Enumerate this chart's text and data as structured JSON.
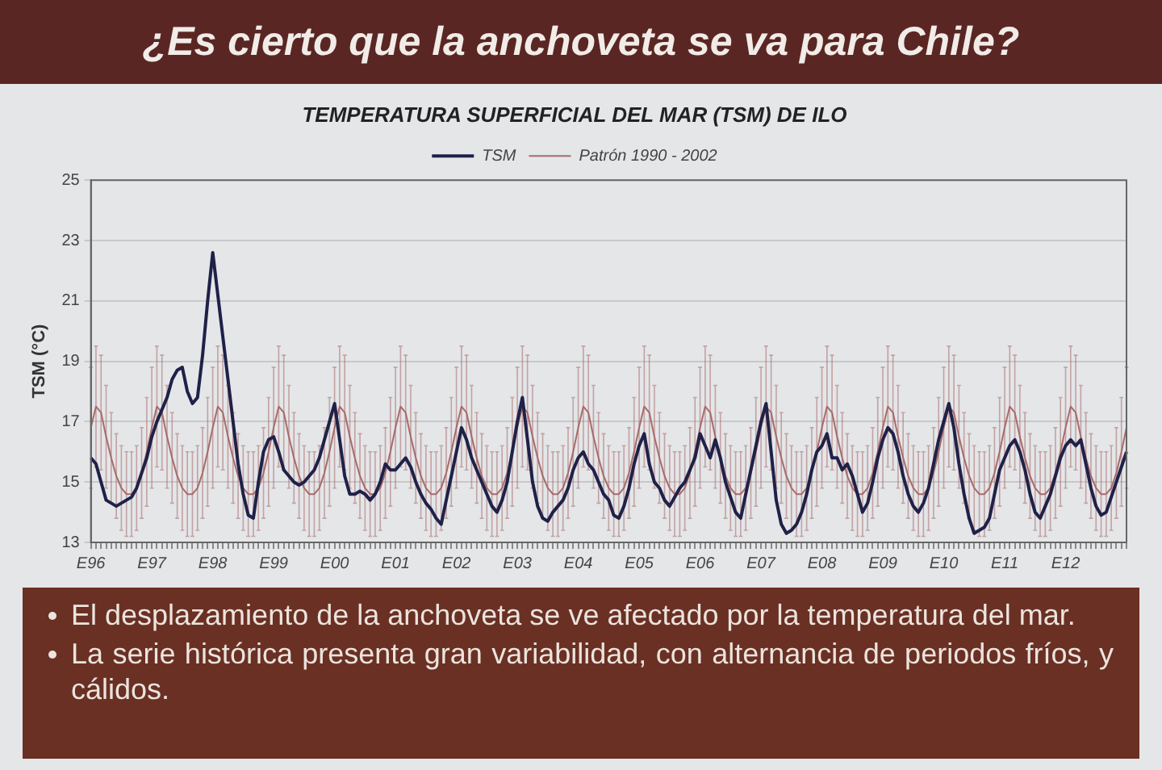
{
  "chart_data": {
    "type": "line",
    "title": "¿Es cierto que la anchoveta se va para Chile?",
    "subtitle": "TEMPERATURA SUPERFICIAL DEL MAR (TSM) DE ILO",
    "ylabel": "TSM (°C)",
    "annotations": [
      "El desplazamiento de la anchoveta se ve afectado por la temperatura del mar.",
      "La serie histórica presenta gran variabilidad, con alternancia de periodos fríos, y cálidos."
    ],
    "categories": [
      "E96",
      null,
      null,
      null,
      null,
      null,
      null,
      null,
      null,
      null,
      null,
      null,
      "E97",
      null,
      null,
      null,
      null,
      null,
      null,
      null,
      null,
      null,
      null,
      null,
      "E98",
      null,
      null,
      null,
      null,
      null,
      null,
      null,
      null,
      null,
      null,
      null,
      "E99",
      null,
      null,
      null,
      null,
      null,
      null,
      null,
      null,
      null,
      null,
      null,
      "E00",
      null,
      null,
      null,
      null,
      null,
      null,
      null,
      null,
      null,
      null,
      null,
      "E01",
      null,
      null,
      null,
      null,
      null,
      null,
      null,
      null,
      null,
      null,
      null,
      "E02",
      null,
      null,
      null,
      null,
      null,
      null,
      null,
      null,
      null,
      null,
      null,
      "E03",
      null,
      null,
      null,
      null,
      null,
      null,
      null,
      null,
      null,
      null,
      null,
      "E04",
      null,
      null,
      null,
      null,
      null,
      null,
      null,
      null,
      null,
      null,
      null,
      "E05",
      null,
      null,
      null,
      null,
      null,
      null,
      null,
      null,
      null,
      null,
      null,
      "E06",
      null,
      null,
      null,
      null,
      null,
      null,
      null,
      null,
      null,
      null,
      null,
      "E07",
      null,
      null,
      null,
      null,
      null,
      null,
      null,
      null,
      null,
      null,
      null,
      "E08",
      null,
      null,
      null,
      null,
      null,
      null,
      null,
      null,
      null,
      null,
      null,
      "E09",
      null,
      null,
      null,
      null,
      null,
      null,
      null,
      null,
      null,
      null,
      null,
      "E10",
      null,
      null,
      null,
      null,
      null,
      null,
      null,
      null,
      null,
      null,
      null,
      "E11",
      null,
      null,
      null,
      null,
      null,
      null,
      null,
      null,
      null,
      null,
      null,
      "E12",
      null,
      null,
      null,
      null,
      null,
      null,
      null,
      null,
      null,
      null,
      null,
      null
    ],
    "series": [
      {
        "name": "TSM",
        "color": "#1f2148",
        "values": [
          15.8,
          15.6,
          15.0,
          14.4,
          14.3,
          14.2,
          14.3,
          14.4,
          14.5,
          14.8,
          15.3,
          15.8,
          16.5,
          17.0,
          17.4,
          17.8,
          18.4,
          18.7,
          18.8,
          18.0,
          17.6,
          17.8,
          19.2,
          21.0,
          22.6,
          21.2,
          19.8,
          18.4,
          17.0,
          15.6,
          14.6,
          13.9,
          13.8,
          15.0,
          16.0,
          16.4,
          16.5,
          16.0,
          15.4,
          15.2,
          15.0,
          14.9,
          15.0,
          15.2,
          15.4,
          15.8,
          16.4,
          17.0,
          17.6,
          16.4,
          15.2,
          14.6,
          14.6,
          14.7,
          14.6,
          14.4,
          14.6,
          15.0,
          15.6,
          15.4,
          15.4,
          15.6,
          15.8,
          15.5,
          15.0,
          14.6,
          14.3,
          14.1,
          13.8,
          13.6,
          14.4,
          15.2,
          16.0,
          16.8,
          16.4,
          15.8,
          15.4,
          15.0,
          14.6,
          14.2,
          14.0,
          14.4,
          15.0,
          16.0,
          17.0,
          17.8,
          16.4,
          15.0,
          14.2,
          13.8,
          13.7,
          14.0,
          14.2,
          14.4,
          14.8,
          15.4,
          15.8,
          16.0,
          15.6,
          15.4,
          15.0,
          14.6,
          14.4,
          13.9,
          13.8,
          14.2,
          14.8,
          15.6,
          16.2,
          16.6,
          15.6,
          15.0,
          14.8,
          14.4,
          14.2,
          14.5,
          14.8,
          15.0,
          15.4,
          15.8,
          16.6,
          16.2,
          15.8,
          16.4,
          15.8,
          15.0,
          14.5,
          14.0,
          13.8,
          14.6,
          15.4,
          16.2,
          17.0,
          17.6,
          16.0,
          14.4,
          13.6,
          13.3,
          13.4,
          13.6,
          14.0,
          14.6,
          15.4,
          16.0,
          16.2,
          16.6,
          15.8,
          15.8,
          15.4,
          15.6,
          15.2,
          14.6,
          14.0,
          14.3,
          15.0,
          15.8,
          16.4,
          16.8,
          16.6,
          16.0,
          15.2,
          14.6,
          14.2,
          14.0,
          14.3,
          14.8,
          15.6,
          16.4,
          17.0,
          17.6,
          16.8,
          15.6,
          14.6,
          13.8,
          13.3,
          13.4,
          13.5,
          13.8,
          14.6,
          15.4,
          15.8,
          16.2,
          16.4,
          16.0,
          15.4,
          14.6,
          14.0,
          13.8,
          14.2,
          14.6,
          15.2,
          15.8,
          16.2,
          16.4,
          16.2,
          16.4,
          15.6,
          14.8,
          14.2,
          13.9,
          14.0,
          14.5,
          15.0,
          15.5,
          16.0
        ]
      },
      {
        "name": "Patrón 1990 - 2002",
        "color": "#a86a6a",
        "values": [
          16.8,
          17.5,
          17.3,
          16.5,
          15.8,
          15.2,
          14.8,
          14.6,
          14.6,
          14.8,
          15.3,
          16.0,
          16.8,
          17.5,
          17.3,
          16.5,
          15.8,
          15.2,
          14.8,
          14.6,
          14.6,
          14.8,
          15.3,
          16.0,
          16.8,
          17.5,
          17.3,
          16.5,
          15.8,
          15.2,
          14.8,
          14.6,
          14.6,
          14.8,
          15.3,
          16.0,
          16.8,
          17.5,
          17.3,
          16.5,
          15.8,
          15.2,
          14.8,
          14.6,
          14.6,
          14.8,
          15.3,
          16.0,
          16.8,
          17.5,
          17.3,
          16.5,
          15.8,
          15.2,
          14.8,
          14.6,
          14.6,
          14.8,
          15.3,
          16.0,
          16.8,
          17.5,
          17.3,
          16.5,
          15.8,
          15.2,
          14.8,
          14.6,
          14.6,
          14.8,
          15.3,
          16.0,
          16.8,
          17.5,
          17.3,
          16.5,
          15.8,
          15.2,
          14.8,
          14.6,
          14.6,
          14.8,
          15.3,
          16.0,
          16.8,
          17.5,
          17.3,
          16.5,
          15.8,
          15.2,
          14.8,
          14.6,
          14.6,
          14.8,
          15.3,
          16.0,
          16.8,
          17.5,
          17.3,
          16.5,
          15.8,
          15.2,
          14.8,
          14.6,
          14.6,
          14.8,
          15.3,
          16.0,
          16.8,
          17.5,
          17.3,
          16.5,
          15.8,
          15.2,
          14.8,
          14.6,
          14.6,
          14.8,
          15.3,
          16.0,
          16.8,
          17.5,
          17.3,
          16.5,
          15.8,
          15.2,
          14.8,
          14.6,
          14.6,
          14.8,
          15.3,
          16.0,
          16.8,
          17.5,
          17.3,
          16.5,
          15.8,
          15.2,
          14.8,
          14.6,
          14.6,
          14.8,
          15.3,
          16.0,
          16.8,
          17.5,
          17.3,
          16.5,
          15.8,
          15.2,
          14.8,
          14.6,
          14.6,
          14.8,
          15.3,
          16.0,
          16.8,
          17.5,
          17.3,
          16.5,
          15.8,
          15.2,
          14.8,
          14.6,
          14.6,
          14.8,
          15.3,
          16.0,
          16.8,
          17.5,
          17.3,
          16.5,
          15.8,
          15.2,
          14.8,
          14.6,
          14.6,
          14.8,
          15.3,
          16.0,
          16.8,
          17.5,
          17.3,
          16.5,
          15.8,
          15.2,
          14.8,
          14.6,
          14.6,
          14.8,
          15.3,
          16.0,
          16.8,
          17.5,
          17.3,
          16.5,
          15.8,
          15.2,
          14.8,
          14.6,
          14.6,
          14.8,
          15.3,
          16.0,
          16.8
        ],
        "errors": [
          2.0,
          2.0,
          1.9,
          1.7,
          1.5,
          1.4,
          1.4,
          1.4,
          1.4,
          1.4,
          1.5,
          1.8,
          2.0,
          2.0,
          1.9,
          1.7,
          1.5,
          1.4,
          1.4,
          1.4,
          1.4,
          1.4,
          1.5,
          1.8,
          2.0,
          2.0,
          1.9,
          1.7,
          1.5,
          1.4,
          1.4,
          1.4,
          1.4,
          1.4,
          1.5,
          1.8,
          2.0,
          2.0,
          1.9,
          1.7,
          1.5,
          1.4,
          1.4,
          1.4,
          1.4,
          1.4,
          1.5,
          1.8,
          2.0,
          2.0,
          1.9,
          1.7,
          1.5,
          1.4,
          1.4,
          1.4,
          1.4,
          1.4,
          1.5,
          1.8,
          2.0,
          2.0,
          1.9,
          1.7,
          1.5,
          1.4,
          1.4,
          1.4,
          1.4,
          1.4,
          1.5,
          1.8,
          2.0,
          2.0,
          1.9,
          1.7,
          1.5,
          1.4,
          1.4,
          1.4,
          1.4,
          1.4,
          1.5,
          1.8,
          2.0,
          2.0,
          1.9,
          1.7,
          1.5,
          1.4,
          1.4,
          1.4,
          1.4,
          1.4,
          1.5,
          1.8,
          2.0,
          2.0,
          1.9,
          1.7,
          1.5,
          1.4,
          1.4,
          1.4,
          1.4,
          1.4,
          1.5,
          1.8,
          2.0,
          2.0,
          1.9,
          1.7,
          1.5,
          1.4,
          1.4,
          1.4,
          1.4,
          1.4,
          1.5,
          1.8,
          2.0,
          2.0,
          1.9,
          1.7,
          1.5,
          1.4,
          1.4,
          1.4,
          1.4,
          1.4,
          1.5,
          1.8,
          2.0,
          2.0,
          1.9,
          1.7,
          1.5,
          1.4,
          1.4,
          1.4,
          1.4,
          1.4,
          1.5,
          1.8,
          2.0,
          2.0,
          1.9,
          1.7,
          1.5,
          1.4,
          1.4,
          1.4,
          1.4,
          1.4,
          1.5,
          1.8,
          2.0,
          2.0,
          1.9,
          1.7,
          1.5,
          1.4,
          1.4,
          1.4,
          1.4,
          1.4,
          1.5,
          1.8,
          2.0,
          2.0,
          1.9,
          1.7,
          1.5,
          1.4,
          1.4,
          1.4,
          1.4,
          1.4,
          1.5,
          1.8,
          2.0,
          2.0,
          1.9,
          1.7,
          1.5,
          1.4,
          1.4,
          1.4,
          1.4,
          1.4,
          1.5,
          1.8,
          2.0,
          2.0,
          1.9,
          1.7,
          1.5,
          1.4,
          1.4,
          1.4,
          1.4,
          1.4,
          1.5,
          1.8,
          2.0
        ]
      }
    ],
    "ylim": [
      13,
      25
    ],
    "yticks": [
      13,
      15,
      17,
      19,
      21,
      23,
      25
    ],
    "grid": "y",
    "legend": "top",
    "marker": "none"
  }
}
